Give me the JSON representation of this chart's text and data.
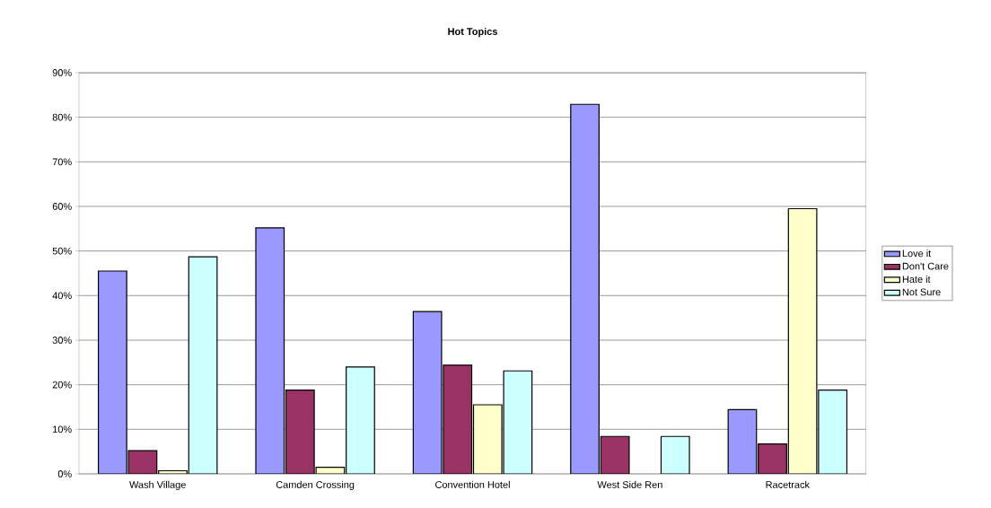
{
  "chart_data": {
    "type": "bar",
    "title": "Hot Topics",
    "categories": [
      "Wash Village",
      "Camden Crossing",
      "Convention Hotel",
      "West Side Ren",
      "Racetrack"
    ],
    "series": [
      {
        "name": "Love it",
        "color": "#9999ff",
        "values": [
          45.5,
          55.2,
          36.4,
          82.9,
          14.4
        ]
      },
      {
        "name": "Don't Care",
        "color": "#993366",
        "values": [
          5.2,
          18.8,
          24.4,
          8.4,
          6.7
        ]
      },
      {
        "name": "Hate it",
        "color": "#ffffcc",
        "values": [
          0.7,
          1.5,
          15.5,
          null,
          59.5
        ]
      },
      {
        "name": "Not Sure",
        "color": "#ccffff",
        "values": [
          48.7,
          24.0,
          23.1,
          8.4,
          18.8
        ]
      }
    ],
    "ylim": [
      0,
      90
    ],
    "yticks": [
      {
        "value": 0,
        "label": "0%"
      },
      {
        "value": 10,
        "label": "10%"
      },
      {
        "value": 20,
        "label": "20%"
      },
      {
        "value": 30,
        "label": "30%"
      },
      {
        "value": 40,
        "label": "40%"
      },
      {
        "value": 50,
        "label": "50%"
      },
      {
        "value": 60,
        "label": "60%"
      },
      {
        "value": 70,
        "label": "70%"
      },
      {
        "value": 80,
        "label": "80%"
      },
      {
        "value": 90,
        "label": "90%"
      }
    ],
    "grid": "y",
    "legend": "right"
  }
}
